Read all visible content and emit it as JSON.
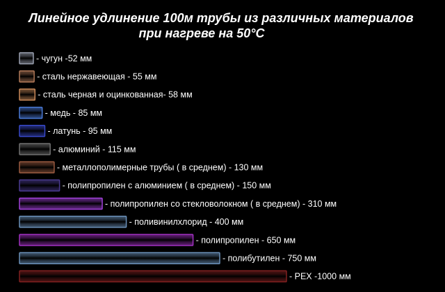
{
  "chart_data": {
    "type": "bar",
    "orientation": "horizontal",
    "title": [
      "Линейное удлинение 100м трубы из различных материалов",
      "при нагреве на 50°С"
    ],
    "categories": [
      "- чугун -52 мм",
      "- сталь нержавеющая - 55 мм",
      "- сталь черная и оцинкованная- 58  мм",
      "- медь - 85 мм",
      "- латунь - 95 мм",
      "- алюминий - 115 мм",
      "- металлополимерные трубы ( в среднем) - 130 мм",
      "- полипропилен с алюминием ( в среднем)  - 150 мм",
      "- полипропилен со стекловолокном ( в среднем)  - 310 мм",
      "- поливинилхлорид  - 400 мм",
      "- полипропилен - 650 мм",
      "- полибутилен - 750 мм",
      "- PEX -1000 мм"
    ],
    "values": [
      52,
      55,
      58,
      85,
      95,
      115,
      130,
      150,
      310,
      400,
      650,
      750,
      1000
    ],
    "colors": [
      "#9aa0b0",
      "#b07858",
      "#c88858",
      "#4a7ad8",
      "#3848c8",
      "#707070",
      "#9a5a40",
      "#4a3a90",
      "#a040d8",
      "#6a90b8",
      "#a030c0",
      "#6a90b8",
      "#802020"
    ]
  }
}
